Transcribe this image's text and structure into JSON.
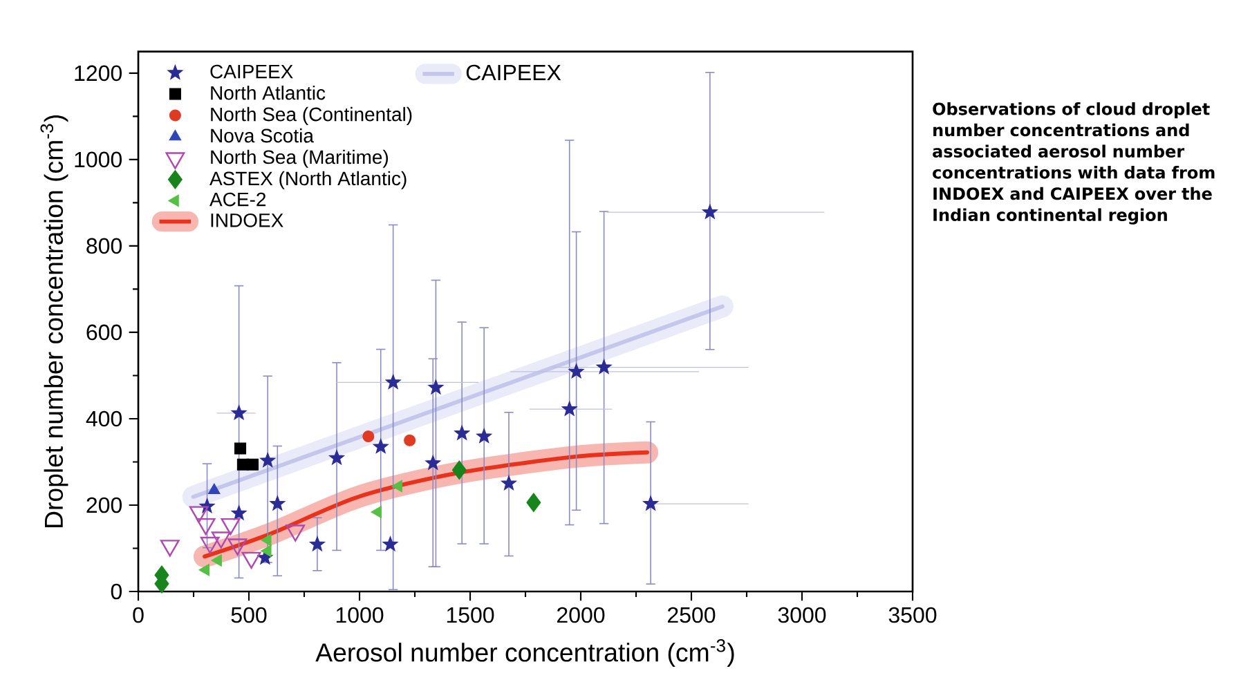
{
  "chart_data": {
    "type": "scatter",
    "xlabel": "Aerosol number concentration (cm$^{-3}$)",
    "ylabel": "Droplet number concentration (cm$^{-3}$)",
    "xlim": [
      0,
      3500
    ],
    "ylim": [
      0,
      1250
    ],
    "xticks": [
      0,
      500,
      1000,
      1500,
      2000,
      2500,
      3000,
      3500
    ],
    "yticks": [
      0,
      200,
      400,
      600,
      800,
      1000,
      1200
    ],
    "legend": "top left",
    "annotations": [
      "Observations of cloud droplet number concentrations and associated aerosol number concentrations with data from INDOEX and CAIPEEX over the Indian continental region"
    ],
    "series": [
      {
        "name": "CAIPEEX",
        "type": "scatter",
        "marker": "star",
        "color": "#2b2b96",
        "x": [
          455,
          455,
          311,
          585,
          629,
          573,
          897,
          809,
          1096,
          1152,
          1139,
          1345,
          1332,
          1463,
          1563,
          1675,
          1949,
          1980,
          2105,
          2584,
          2316
        ],
        "values": [
          413,
          181,
          197,
          303,
          203,
          78,
          309,
          109,
          335,
          484,
          109,
          472,
          297,
          366,
          359,
          250,
          422,
          509,
          519,
          878,
          203
        ],
        "errors": [
          [
            30,
            709
          ],
          null,
          [
            100,
            297
          ],
          [
            66,
            500
          ],
          [
            35,
            338
          ],
          null,
          [
            94,
            531
          ],
          [
            47,
            172
          ],
          [
            94,
            562
          ],
          [
            3,
            850
          ],
          null,
          [
            56,
            722
          ],
          [
            56,
            540
          ],
          [
            109,
            625
          ],
          [
            109,
            612
          ],
          [
            81,
            416
          ],
          [
            153,
            1046
          ],
          [
            187,
            834
          ],
          [
            156,
            881
          ],
          [
            559,
            1203
          ],
          [
            16,
            394
          ]
        ],
        "xerrors": [
          [
            355,
            530
          ],
          null,
          null,
          null,
          null,
          null,
          null,
          null,
          null,
          [
            897,
            1538
          ],
          null,
          null,
          null,
          null,
          null,
          null,
          [
            1768,
            2142
          ],
          [
            1682,
            2535
          ],
          [
            1868,
            2758
          ],
          [
            2117,
            3101
          ],
          [
            2300,
            2758
          ]
        ]
      },
      {
        "name": "North Atlantic",
        "type": "scatter",
        "marker": "square",
        "color": "#000000",
        "x": [
          461,
          473,
          517
        ],
        "values": [
          331,
          294,
          294
        ]
      },
      {
        "name": "North Sea (Continental)",
        "type": "scatter",
        "marker": "circle",
        "color": "#e03a22",
        "x": [
          1040,
          1227
        ],
        "values": [
          359,
          350
        ]
      },
      {
        "name": "Nova Scotia",
        "type": "scatter",
        "marker": "triangle",
        "color": "#2f45b8",
        "x": [
          343
        ],
        "values": [
          234
        ]
      },
      {
        "name": "North Sea (Maritime)",
        "type": "scatter",
        "marker": "triangle-down",
        "color": "#b048b0",
        "x": [
          143,
          274,
          305,
          324,
          374,
          417,
          448,
          511,
          710
        ],
        "values": [
          106,
          184,
          156,
          113,
          125,
          156,
          109,
          78,
          141
        ]
      },
      {
        "name": "ASTEX (North Atlantic)",
        "type": "scatter",
        "marker": "diamond",
        "color": "#17851c",
        "x": [
          106,
          106,
          1451,
          1787
        ],
        "values": [
          38,
          18,
          281,
          206
        ]
      },
      {
        "name": "ACE-2",
        "type": "scatter",
        "marker": "triangle-left",
        "color": "#55c043",
        "x": [
          305,
          361,
          585,
          585,
          1083,
          1177
        ],
        "values": [
          50,
          72,
          119,
          94,
          184,
          244
        ]
      },
      {
        "name": "INDOEX",
        "type": "line",
        "color": "#e8321c",
        "x": [
          300,
          600,
          1000,
          1450,
          1975,
          2300
        ],
        "values": [
          81,
          134,
          220,
          275,
          312,
          322
        ]
      },
      {
        "name": "CAIPEEX",
        "type": "line",
        "color": "#c4c6ec",
        "x": [
          249,
          2640
        ],
        "values": [
          219,
          660
        ]
      }
    ]
  }
}
